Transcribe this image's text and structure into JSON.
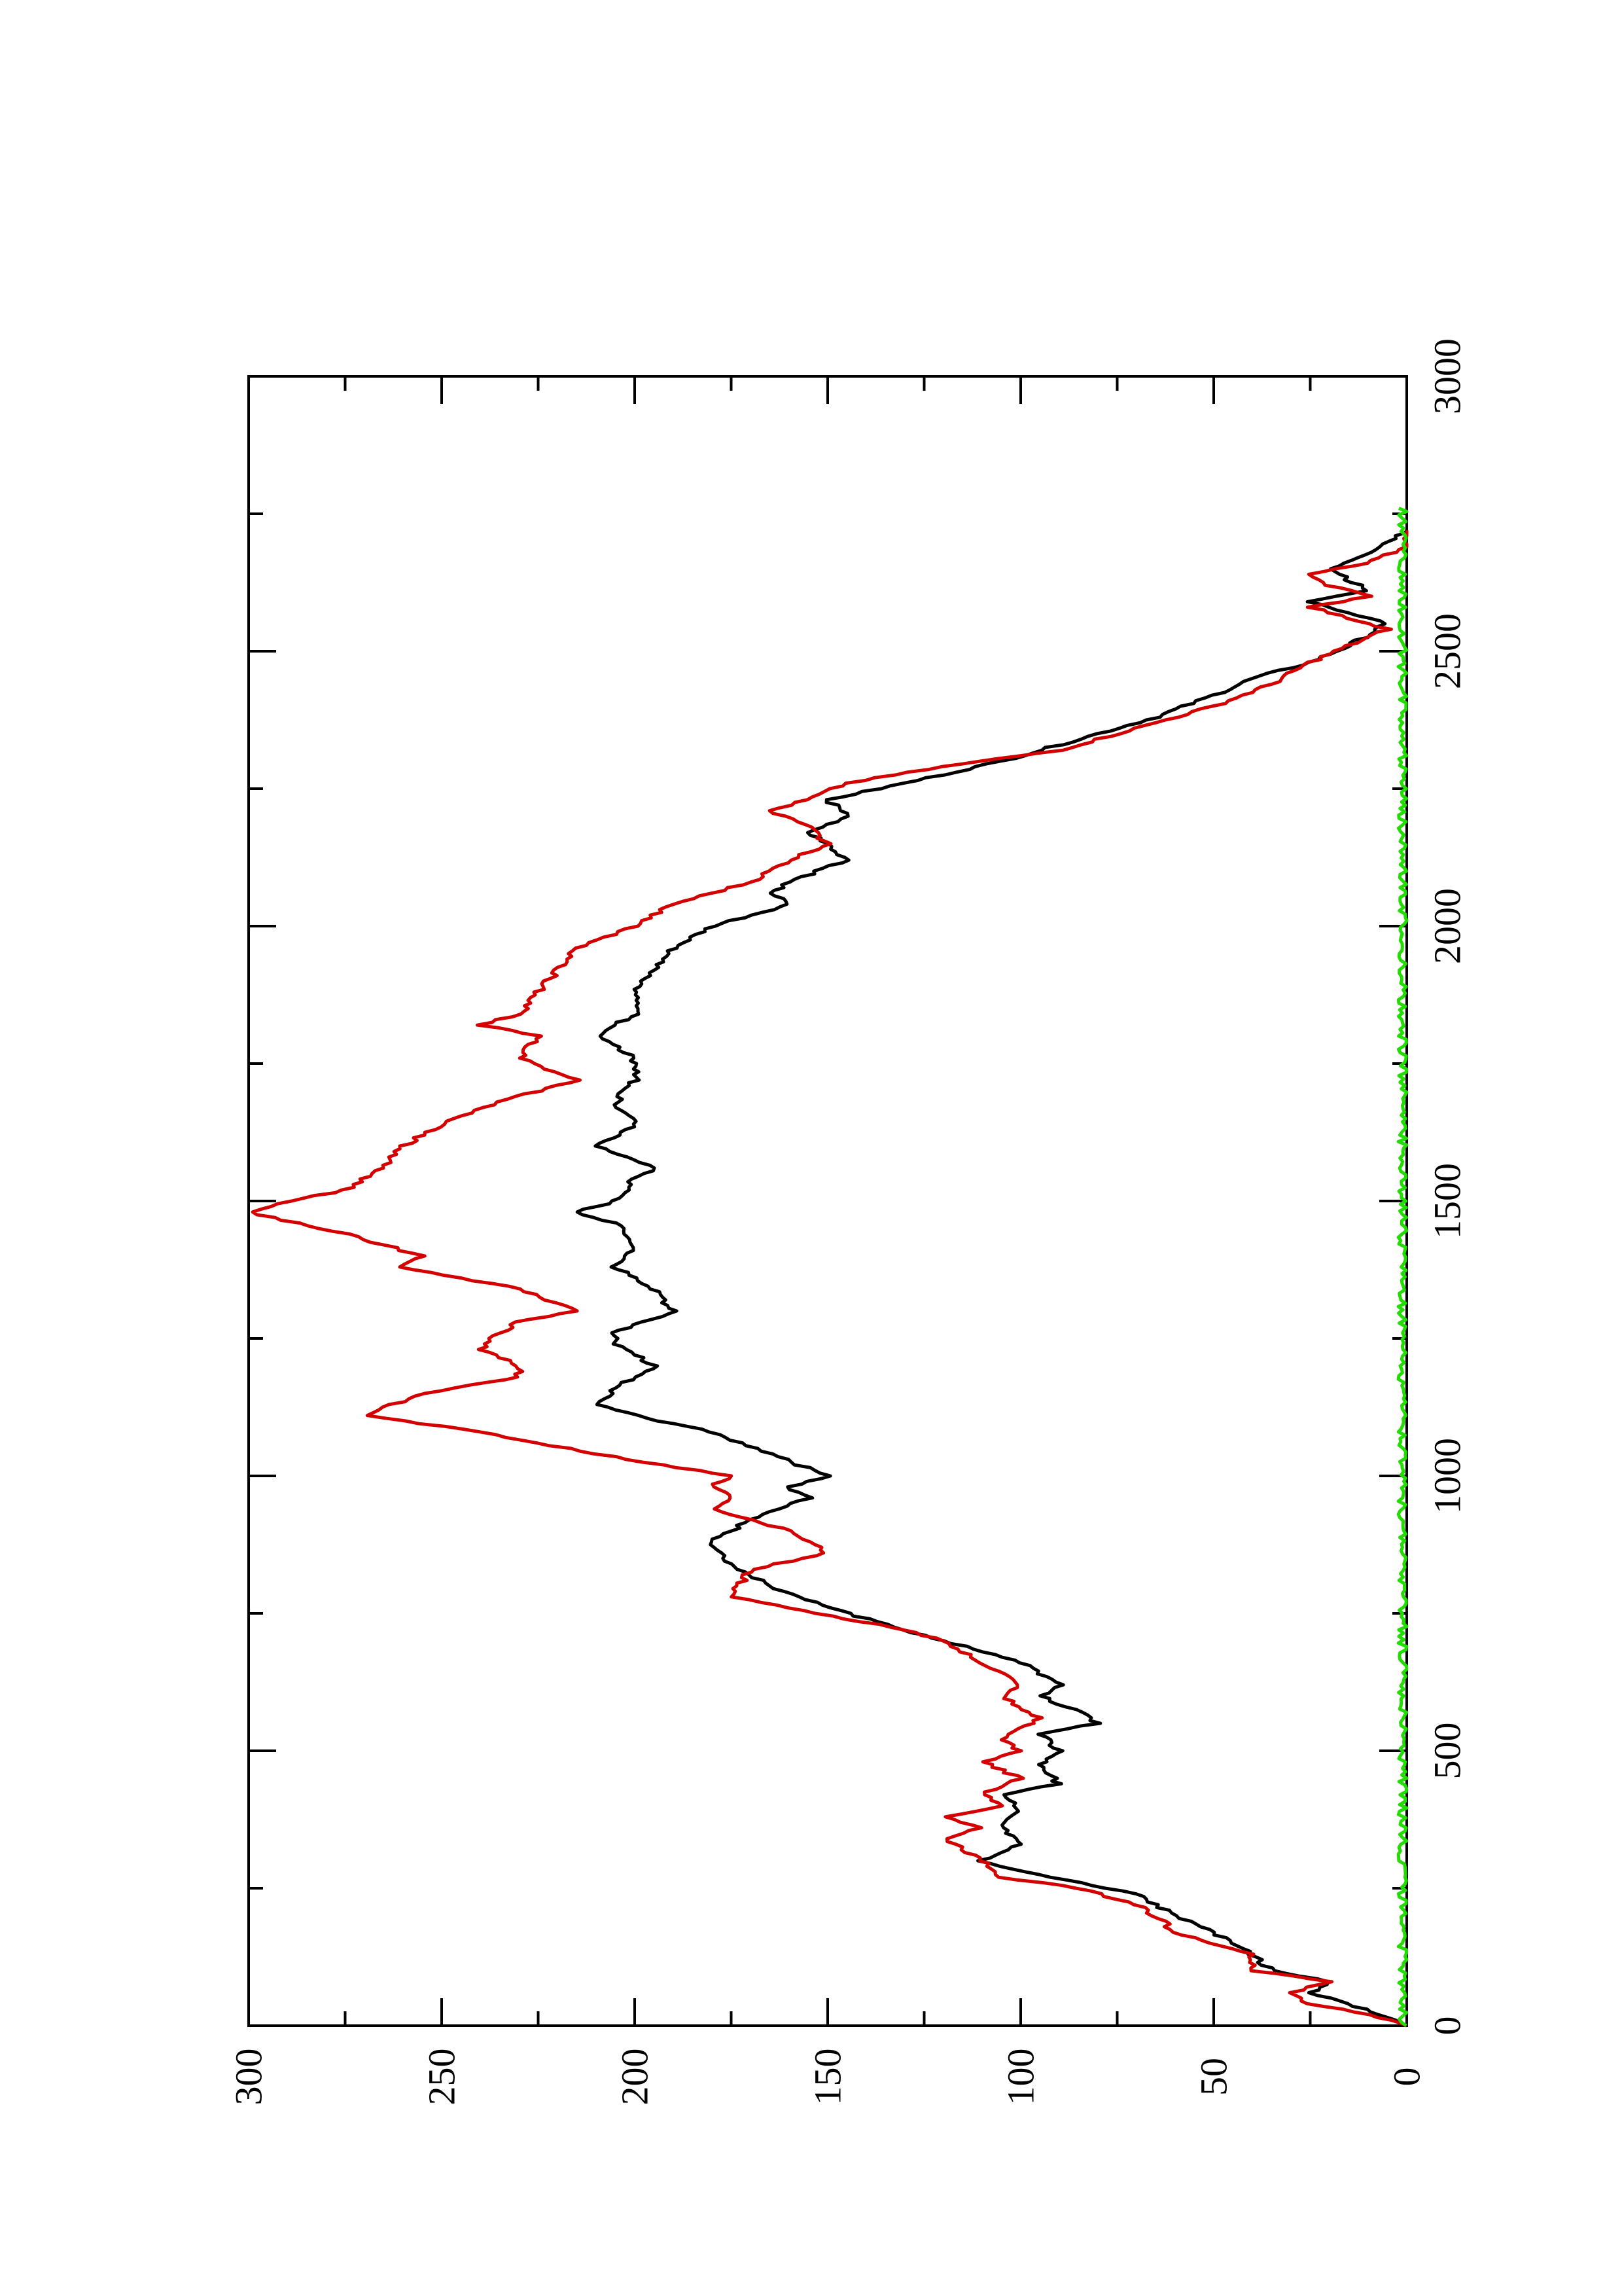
{
  "chart_data": {
    "type": "line",
    "orientation": "rotated 90° counter-clockwise (landscape plot on portrait page)",
    "xlim": [
      0,
      3000
    ],
    "ylim": [
      0,
      300
    ],
    "x_ticks": [
      0,
      500,
      1000,
      1500,
      2000,
      2500,
      3000
    ],
    "y_ticks": [
      0,
      50,
      100,
      150,
      200,
      250,
      300
    ],
    "x_tick_labels": [
      "0",
      "500",
      "1000",
      "1500",
      "2000",
      "2500",
      "3000"
    ],
    "y_tick_labels": [
      "0",
      "50",
      "100",
      "150",
      "200",
      "250",
      "300"
    ],
    "xlabel": "",
    "ylabel": "",
    "title": "",
    "series": [
      {
        "color": "#000000",
        "x": [
          0,
          40,
          60,
          80,
          100,
          130,
          170,
          200,
          220,
          240,
          260,
          280,
          300,
          330,
          360,
          390,
          420,
          440,
          470,
          500,
          530,
          550,
          570,
          600,
          620,
          660,
          700,
          760,
          800,
          840,
          880,
          920,
          960,
          980,
          1000,
          1040,
          1080,
          1110,
          1130,
          1160,
          1200,
          1240,
          1260,
          1300,
          1340,
          1380,
          1420,
          1460,
          1480,
          1500,
          1540,
          1560,
          1600,
          1640,
          1680,
          1720,
          1760,
          1800,
          1840,
          1880,
          1920,
          1960,
          2000,
          2040,
          2060,
          2080,
          2120,
          2150,
          2170,
          2200,
          2230,
          2260,
          2300,
          2340,
          2380,
          2420,
          2450,
          2480,
          2510,
          2550,
          2570,
          2590,
          2610,
          2630,
          2650,
          2680,
          2720
        ],
        "y": [
          0,
          15,
          25,
          20,
          35,
          40,
          50,
          60,
          65,
          70,
          85,
          100,
          110,
          100,
          105,
          100,
          105,
          90,
          95,
          90,
          95,
          80,
          85,
          95,
          90,
          100,
          120,
          150,
          165,
          175,
          180,
          170,
          155,
          160,
          150,
          165,
          180,
          200,
          210,
          205,
          195,
          205,
          205,
          190,
          195,
          205,
          200,
          205,
          215,
          205,
          200,
          195,
          210,
          200,
          205,
          200,
          200,
          210,
          200,
          200,
          195,
          190,
          180,
          160,
          165,
          160,
          145,
          150,
          155,
          145,
          150,
          130,
          105,
          85,
          65,
          50,
          40,
          25,
          15,
          5,
          15,
          25,
          10,
          15,
          20,
          10,
          0
        ]
      },
      {
        "color": "#d40000",
        "x": [
          0,
          20,
          40,
          60,
          80,
          100,
          130,
          170,
          200,
          220,
          250,
          270,
          300,
          320,
          340,
          360,
          380,
          400,
          420,
          450,
          480,
          500,
          520,
          560,
          600,
          620,
          660,
          700,
          720,
          760,
          780,
          830,
          860,
          900,
          940,
          960,
          980,
          1000,
          1040,
          1080,
          1110,
          1150,
          1180,
          1200,
          1230,
          1260,
          1280,
          1300,
          1340,
          1380,
          1400,
          1440,
          1480,
          1500,
          1520,
          1560,
          1600,
          1640,
          1680,
          1700,
          1720,
          1760,
          1800,
          1820,
          1840,
          1880,
          1920,
          1960,
          2000,
          2040,
          2080,
          2120,
          2150,
          2180,
          2210,
          2230,
          2260,
          2290,
          2320,
          2360,
          2400,
          2440,
          2480,
          2510,
          2540,
          2560,
          2580,
          2600,
          2620,
          2640,
          2660,
          2690,
          2720
        ],
        "y": [
          0,
          10,
          25,
          30,
          20,
          40,
          40,
          60,
          65,
          70,
          85,
          105,
          110,
          115,
          120,
          110,
          120,
          105,
          110,
          100,
          110,
          100,
          105,
          95,
          105,
          100,
          110,
          120,
          130,
          160,
          175,
          170,
          150,
          160,
          180,
          175,
          180,
          175,
          210,
          240,
          270,
          255,
          230,
          230,
          240,
          235,
          230,
          215,
          230,
          260,
          255,
          275,
          300,
          290,
          275,
          265,
          260,
          250,
          235,
          225,
          215,
          230,
          225,
          240,
          230,
          225,
          220,
          215,
          200,
          190,
          170,
          160,
          150,
          155,
          165,
          155,
          145,
          120,
          90,
          70,
          50,
          35,
          25,
          15,
          5,
          15,
          25,
          10,
          20,
          25,
          10,
          0,
          0
        ]
      },
      {
        "color": "#22dd00",
        "x": [
          0,
          3000
        ],
        "y": [
          0,
          0
        ],
        "note": "noisy near-zero baseline"
      }
    ]
  }
}
